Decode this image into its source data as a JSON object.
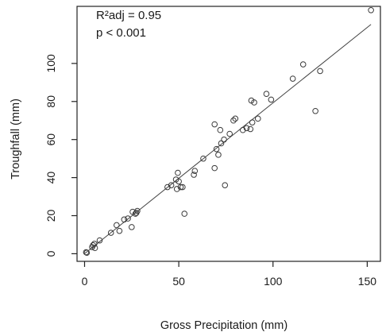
{
  "chart_data": {
    "type": "scatter",
    "xlabel": "Gross Precipitation (mm)",
    "ylabel": "Troughfall (mm)",
    "xlim": [
      -4,
      157
    ],
    "ylim": [
      -4,
      130
    ],
    "x_ticks": [
      0,
      50,
      100,
      150
    ],
    "y_ticks": [
      0,
      20,
      40,
      60,
      80,
      100
    ],
    "grid": false,
    "annotations": [
      "R²adj = 0.95",
      "p < 0.001"
    ],
    "fit_line": {
      "x": [
        0,
        152
      ],
      "y": [
        0,
        120.5
      ]
    },
    "points": [
      {
        "x": 0.8,
        "y": 0.8
      },
      {
        "x": 1.2,
        "y": 0.5
      },
      {
        "x": 4,
        "y": 3.5
      },
      {
        "x": 4.5,
        "y": 4.5
      },
      {
        "x": 5.2,
        "y": 5.2
      },
      {
        "x": 5.5,
        "y": 3
      },
      {
        "x": 8,
        "y": 7
      },
      {
        "x": 14,
        "y": 11
      },
      {
        "x": 17,
        "y": 15
      },
      {
        "x": 18.5,
        "y": 12
      },
      {
        "x": 21,
        "y": 18
      },
      {
        "x": 23,
        "y": 18.5
      },
      {
        "x": 25,
        "y": 14
      },
      {
        "x": 25.5,
        "y": 22
      },
      {
        "x": 27,
        "y": 21
      },
      {
        "x": 27.5,
        "y": 21.5
      },
      {
        "x": 28,
        "y": 22.5
      },
      {
        "x": 44,
        "y": 35
      },
      {
        "x": 46,
        "y": 36
      },
      {
        "x": 48.5,
        "y": 39
      },
      {
        "x": 49,
        "y": 34
      },
      {
        "x": 49.5,
        "y": 42.5
      },
      {
        "x": 50,
        "y": 38
      },
      {
        "x": 51,
        "y": 35
      },
      {
        "x": 52,
        "y": 35
      },
      {
        "x": 53,
        "y": 21
      },
      {
        "x": 58,
        "y": 41.5
      },
      {
        "x": 58.5,
        "y": 43.5
      },
      {
        "x": 63,
        "y": 50
      },
      {
        "x": 69,
        "y": 45
      },
      {
        "x": 69,
        "y": 68
      },
      {
        "x": 70,
        "y": 55
      },
      {
        "x": 71,
        "y": 52
      },
      {
        "x": 72,
        "y": 65
      },
      {
        "x": 72.5,
        "y": 58
      },
      {
        "x": 74,
        "y": 60
      },
      {
        "x": 74.5,
        "y": 36
      },
      {
        "x": 77,
        "y": 63
      },
      {
        "x": 79,
        "y": 70
      },
      {
        "x": 80,
        "y": 71
      },
      {
        "x": 84,
        "y": 65
      },
      {
        "x": 86,
        "y": 66
      },
      {
        "x": 88,
        "y": 65.5
      },
      {
        "x": 88.5,
        "y": 80.5
      },
      {
        "x": 89,
        "y": 69
      },
      {
        "x": 90,
        "y": 79.5
      },
      {
        "x": 92,
        "y": 71
      },
      {
        "x": 96.5,
        "y": 84
      },
      {
        "x": 99,
        "y": 81
      },
      {
        "x": 110.5,
        "y": 92
      },
      {
        "x": 116,
        "y": 99.5
      },
      {
        "x": 122.5,
        "y": 75
      },
      {
        "x": 125,
        "y": 96
      },
      {
        "x": 152,
        "y": 128
      }
    ]
  }
}
